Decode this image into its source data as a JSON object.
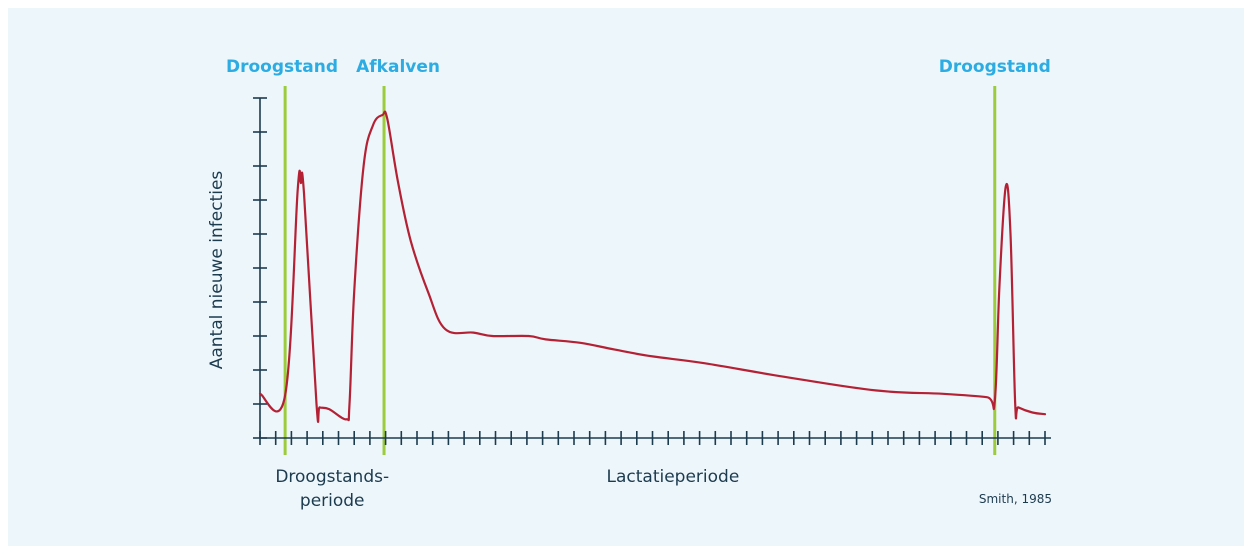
{
  "chart_data": {
    "type": "line",
    "ylabel": "Aantal nieuwe infecties",
    "xlim": [
      0,
      50
    ],
    "ylim": [
      0,
      10
    ],
    "y_ticks": 10,
    "x_ticks": 50,
    "grid": false,
    "phase_markers": [
      {
        "label": "Droogstand",
        "x": 1.6
      },
      {
        "label": "Afkalven",
        "x": 7.9
      },
      {
        "label": "Droogstand",
        "x": 46.8
      }
    ],
    "x_period_labels": [
      {
        "lines": [
          "Droogstands-",
          "periode"
        ],
        "x": 4.6
      },
      {
        "lines": [
          "Lactatieperiode"
        ],
        "x": 26.3
      }
    ],
    "source": "Smith, 1985",
    "series": [
      {
        "x": [
          0,
          1.6,
          2.4,
          2.6,
          2.8,
          3.6,
          3.8,
          4.4,
          5.5,
          5.7,
          6.0,
          6.6,
          7.2,
          7.8,
          8.1,
          8.8,
          9.6,
          10.7,
          11.8,
          13.6,
          14.8,
          17.1,
          18.2,
          20.4,
          22.6,
          25.0,
          28.3,
          33.4,
          39.2,
          43.5,
          46.3,
          46.8,
          47.1,
          47.5,
          47.8,
          48.1,
          48.3,
          49.2,
          50.0
        ],
        "y": [
          1.3,
          1.25,
          7.3,
          7.5,
          7.2,
          1.0,
          0.9,
          0.85,
          0.55,
          1.0,
          4.3,
          8.0,
          9.2,
          9.5,
          9.4,
          7.5,
          5.8,
          4.3,
          3.2,
          3.1,
          3.0,
          3.0,
          2.9,
          2.8,
          2.6,
          2.4,
          2.2,
          1.8,
          1.4,
          1.3,
          1.2,
          1.1,
          4.5,
          7.4,
          6.0,
          1.0,
          0.9,
          0.75,
          0.7
        ]
      }
    ]
  }
}
